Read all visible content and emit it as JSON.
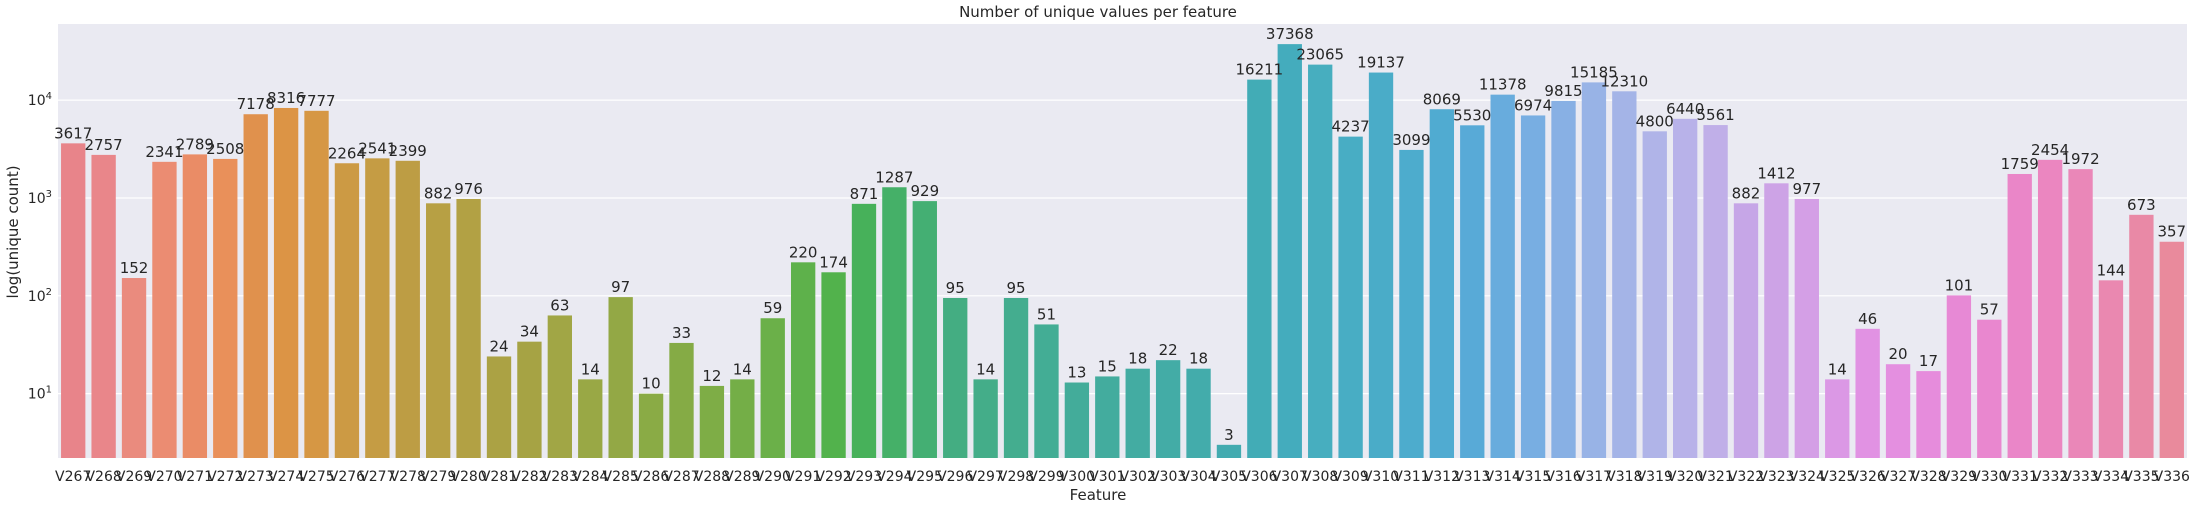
{
  "chart_data": {
    "type": "bar",
    "title": "Number of unique values per feature",
    "xlabel": "Feature",
    "ylabel": "log(unique count)",
    "yscale": "log",
    "ylim": [
      2.2,
      60000
    ],
    "grid": true,
    "background": "#eaeaf2",
    "ytick_labels": [
      {
        "value": 10,
        "base": "10",
        "exp": "1"
      },
      {
        "value": 100,
        "base": "10",
        "exp": "2"
      },
      {
        "value": 1000,
        "base": "10",
        "exp": "3"
      },
      {
        "value": 10000,
        "base": "10",
        "exp": "4"
      }
    ],
    "categories": [
      "V267",
      "V268",
      "V269",
      "V270",
      "V271",
      "V272",
      "V273",
      "V274",
      "V275",
      "V276",
      "V277",
      "V278",
      "V279",
      "V280",
      "V281",
      "V282",
      "V283",
      "V284",
      "V285",
      "V286",
      "V287",
      "V288",
      "V289",
      "V290",
      "V291",
      "V292",
      "V293",
      "V294",
      "V295",
      "V296",
      "V297",
      "V298",
      "V299",
      "V300",
      "V301",
      "V302",
      "V303",
      "V304",
      "V305",
      "V306",
      "V307",
      "V308",
      "V309",
      "V310",
      "V311",
      "V312",
      "V313",
      "V314",
      "V315",
      "V316",
      "V317",
      "V318",
      "V319",
      "V320",
      "V321",
      "V322",
      "V323",
      "V324",
      "V325",
      "V326",
      "V327",
      "V328",
      "V329",
      "V330",
      "V331",
      "V332",
      "V333",
      "V334",
      "V335",
      "V336"
    ],
    "values": [
      3617,
      2757,
      152,
      2341,
      2789,
      2508,
      7178,
      8316,
      7777,
      2264,
      2541,
      2399,
      882,
      976,
      24,
      34,
      63,
      14,
      97,
      10,
      33,
      12,
      14,
      59,
      220,
      174,
      871,
      1287,
      929,
      95,
      14,
      95,
      51,
      13,
      15,
      18,
      22,
      18,
      3,
      16211,
      37368,
      23065,
      4237,
      19137,
      3099,
      8069,
      5530,
      11378,
      6974,
      9815,
      15185,
      12310,
      4800,
      6440,
      5561,
      882,
      1412,
      977,
      14,
      46,
      20,
      17,
      101,
      57,
      1759,
      2454,
      1972,
      144,
      673,
      357
    ],
    "colors": [
      "#e8848a",
      "#e9868a",
      "#ea8b7e",
      "#eb8c72",
      "#ea8c66",
      "#e9905a",
      "#e0914d",
      "#dc9445",
      "#d69744",
      "#cc9a44",
      "#c59c44",
      "#bd9d44",
      "#b7a044",
      "#b2a144",
      "#aba244",
      "#a6a344",
      "#a1a645",
      "#99a845",
      "#93a845",
      "#8aab45",
      "#85ab45",
      "#7ead46",
      "#74ae47",
      "#6bb049",
      "#5eb14b",
      "#52b24c",
      "#47b15a",
      "#45b068",
      "#44af73",
      "#44ad82",
      "#44ad89",
      "#44ad8f",
      "#43ad95",
      "#43ac9a",
      "#43ac9e",
      "#43aca2",
      "#43aca6",
      "#43acab",
      "#43abb0",
      "#42acb6",
      "#44acbd",
      "#47aebf",
      "#48adc4",
      "#4aacc8",
      "#4daccd",
      "#50abd1",
      "#58aad7",
      "#68acdd",
      "#78aee2",
      "#88b0e4",
      "#98b3e6",
      "#a4b4e7",
      "#b0b4e8",
      "#b8b2e9",
      "#c0afe8",
      "#c6a6e7",
      "#cda3e6",
      "#d49fe6",
      "#db98e5",
      "#e192e3",
      "#e48fe0",
      "#e68cdc",
      "#e789d5",
      "#e987cf",
      "#ea86c8",
      "#eb86c0",
      "#ea87b8",
      "#ea88b0",
      "#e989a6",
      "#e98a9c"
    ]
  }
}
